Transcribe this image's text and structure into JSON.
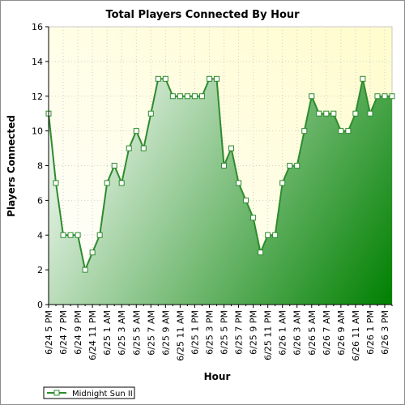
{
  "chart_data": {
    "type": "area",
    "title": "Total Players Connected By Hour",
    "xlabel": "Hour",
    "ylabel": "Players Connected",
    "ylim": [
      0,
      16
    ],
    "yticks": [
      0,
      2,
      4,
      6,
      8,
      10,
      12,
      14,
      16
    ],
    "grid": true,
    "legend_position": "bottom-left",
    "categories": [
      "6/24 5 PM",
      "6/24 6 PM",
      "6/24 7 PM",
      "6/24 8 PM",
      "6/24 9 PM",
      "6/24 10 PM",
      "6/24 11 PM",
      "6/25 12 AM",
      "6/25 1 AM",
      "6/25 2 AM",
      "6/25 3 AM",
      "6/25 4 AM",
      "6/25 5 AM",
      "6/25 6 AM",
      "6/25 7 AM",
      "6/25 8 AM",
      "6/25 9 AM",
      "6/25 10 AM",
      "6/25 11 AM",
      "6/25 12 PM",
      "6/25 1 PM",
      "6/25 2 PM",
      "6/25 3 PM",
      "6/25 4 PM",
      "6/25 5 PM",
      "6/25 6 PM",
      "6/25 7 PM",
      "6/25 8 PM",
      "6/25 9 PM",
      "6/25 10 PM",
      "6/25 11 PM",
      "6/26 12 AM",
      "6/26 1 AM",
      "6/26 2 AM",
      "6/26 3 AM",
      "6/26 4 AM",
      "6/26 5 AM",
      "6/26 6 AM",
      "6/26 7 AM",
      "6/26 8 AM",
      "6/26 9 AM",
      "6/26 10 AM",
      "6/26 11 AM",
      "6/26 12 PM",
      "6/26 1 PM",
      "6/26 2 PM",
      "6/26 3 PM",
      "6/26 4 PM"
    ],
    "tick_labels": [
      "6/24 5 PM",
      "6/24 7 PM",
      "6/24 9 PM",
      "6/24 11 PM",
      "6/25 1 AM",
      "6/25 3 AM",
      "6/25 5 AM",
      "6/25 7 AM",
      "6/25 9 AM",
      "6/25 11 AM",
      "6/25 1 PM",
      "6/25 3 PM",
      "6/25 5 PM",
      "6/25 7 PM",
      "6/25 9 PM",
      "6/25 11 PM",
      "6/26 1 AM",
      "6/26 3 AM",
      "6/26 5 AM",
      "6/26 7 AM",
      "6/26 9 AM",
      "6/26 11 AM",
      "6/26 1 PM",
      "6/26 3 PM"
    ],
    "series": [
      {
        "name": "Midnight Sun II",
        "values": [
          11,
          7,
          4,
          4,
          4,
          2,
          3,
          4,
          7,
          8,
          7,
          9,
          10,
          9,
          11,
          13,
          13,
          12,
          12,
          12,
          12,
          12,
          13,
          13,
          8,
          9,
          7,
          6,
          5,
          3,
          4,
          4,
          7,
          8,
          8,
          10,
          12,
          11,
          11,
          11,
          10,
          10,
          11,
          13,
          11,
          12,
          12,
          12
        ]
      }
    ],
    "colors": {
      "line": "#2e8b2e",
      "fill_light": "#ffffff",
      "fill_dark": "#008000",
      "plot_background": "#fffde0",
      "marker_fill": "#ffffff"
    }
  }
}
